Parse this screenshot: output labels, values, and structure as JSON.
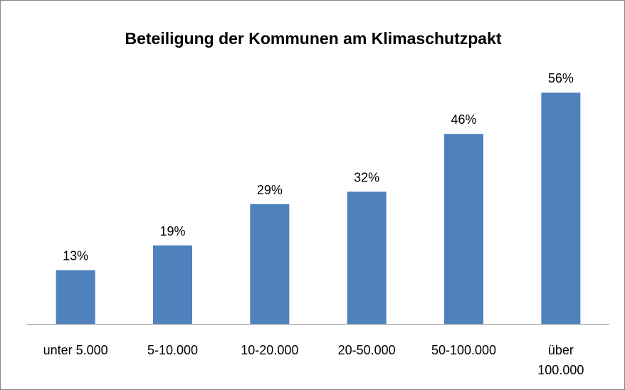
{
  "chart_data": {
    "type": "bar",
    "title": "Beteiligung der Kommunen am Klimaschutzpakt",
    "categories": [
      "unter 5.000",
      "5-10.000",
      "10-20.000",
      "20-50.000",
      "50-100.000",
      "über 100.000"
    ],
    "values": [
      13,
      19,
      29,
      32,
      46,
      56
    ],
    "value_labels": [
      "13%",
      "19%",
      "29%",
      "32%",
      "46%",
      "56%"
    ],
    "color": "#4f81bd",
    "ylim": [
      0,
      60
    ]
  }
}
